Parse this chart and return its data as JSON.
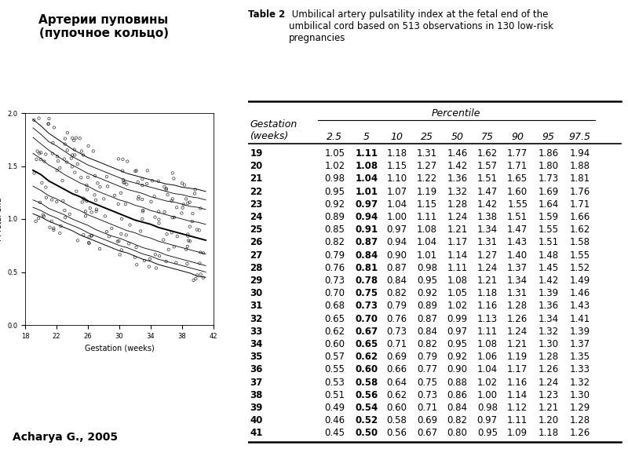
{
  "title_left": "Артерии пуповины\n(пупочное кольцо)",
  "author": "Acharya G., 2005",
  "table_title_bold": "Table 2",
  "table_title_rest": " Umbilical artery pulsatility index at the fetal end of the\numbilical cord based on 513 observations in 130 low-risk\npregnancies",
  "xlabel": "Gestation (weeks)",
  "ylabel": "PI fetal end",
  "xlim": [
    18,
    42
  ],
  "ylim": [
    0.0,
    2.0
  ],
  "xticks": [
    18,
    22,
    26,
    30,
    34,
    38,
    42
  ],
  "yticks": [
    0.0,
    0.5,
    1.0,
    1.5,
    2.0
  ],
  "table_data": [
    [
      19,
      1.05,
      1.11,
      1.18,
      1.31,
      1.46,
      1.62,
      1.77,
      1.86,
      1.94
    ],
    [
      20,
      1.02,
      1.08,
      1.15,
      1.27,
      1.42,
      1.57,
      1.71,
      1.8,
      1.88
    ],
    [
      21,
      0.98,
      1.04,
      1.1,
      1.22,
      1.36,
      1.51,
      1.65,
      1.73,
      1.81
    ],
    [
      22,
      0.95,
      1.01,
      1.07,
      1.19,
      1.32,
      1.47,
      1.6,
      1.69,
      1.76
    ],
    [
      23,
      0.92,
      0.97,
      1.04,
      1.15,
      1.28,
      1.42,
      1.55,
      1.64,
      1.71
    ],
    [
      24,
      0.89,
      0.94,
      1.0,
      1.11,
      1.24,
      1.38,
      1.51,
      1.59,
      1.66
    ],
    [
      25,
      0.85,
      0.91,
      0.97,
      1.08,
      1.21,
      1.34,
      1.47,
      1.55,
      1.62
    ],
    [
      26,
      0.82,
      0.87,
      0.94,
      1.04,
      1.17,
      1.31,
      1.43,
      1.51,
      1.58
    ],
    [
      27,
      0.79,
      0.84,
      0.9,
      1.01,
      1.14,
      1.27,
      1.4,
      1.48,
      1.55
    ],
    [
      28,
      0.76,
      0.81,
      0.87,
      0.98,
      1.11,
      1.24,
      1.37,
      1.45,
      1.52
    ],
    [
      29,
      0.73,
      0.78,
      0.84,
      0.95,
      1.08,
      1.21,
      1.34,
      1.42,
      1.49
    ],
    [
      30,
      0.7,
      0.75,
      0.82,
      0.92,
      1.05,
      1.18,
      1.31,
      1.39,
      1.46
    ],
    [
      31,
      0.68,
      0.73,
      0.79,
      0.89,
      1.02,
      1.16,
      1.28,
      1.36,
      1.43
    ],
    [
      32,
      0.65,
      0.7,
      0.76,
      0.87,
      0.99,
      1.13,
      1.26,
      1.34,
      1.41
    ],
    [
      33,
      0.62,
      0.67,
      0.73,
      0.84,
      0.97,
      1.11,
      1.24,
      1.32,
      1.39
    ],
    [
      34,
      0.6,
      0.65,
      0.71,
      0.82,
      0.95,
      1.08,
      1.21,
      1.3,
      1.37
    ],
    [
      35,
      0.57,
      0.62,
      0.69,
      0.79,
      0.92,
      1.06,
      1.19,
      1.28,
      1.35
    ],
    [
      36,
      0.55,
      0.6,
      0.66,
      0.77,
      0.9,
      1.04,
      1.17,
      1.26,
      1.33
    ],
    [
      37,
      0.53,
      0.58,
      0.64,
      0.75,
      0.88,
      1.02,
      1.16,
      1.24,
      1.32
    ],
    [
      38,
      0.51,
      0.56,
      0.62,
      0.73,
      0.86,
      1.0,
      1.14,
      1.23,
      1.3
    ],
    [
      39,
      0.49,
      0.54,
      0.6,
      0.71,
      0.84,
      0.98,
      1.12,
      1.21,
      1.29
    ],
    [
      40,
      0.46,
      0.52,
      0.58,
      0.69,
      0.82,
      0.97,
      1.11,
      1.2,
      1.28
    ],
    [
      41,
      0.45,
      0.5,
      0.56,
      0.67,
      0.8,
      0.95,
      1.09,
      1.18,
      1.26
    ]
  ],
  "scatter_seed": 42,
  "n_scatter": 200,
  "background_color": "#ffffff",
  "text_color": "#000000"
}
